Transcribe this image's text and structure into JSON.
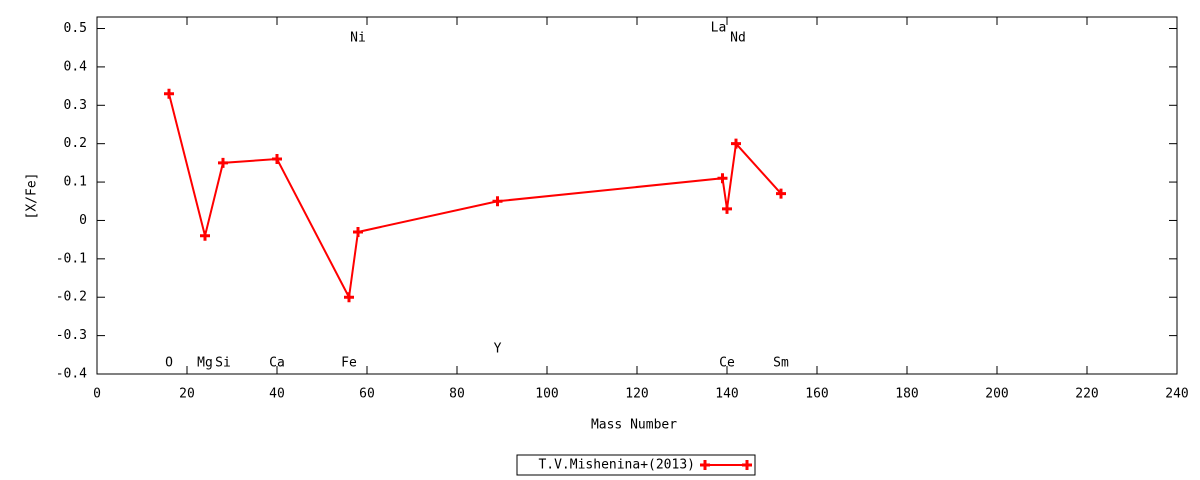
{
  "chart_data": {
    "type": "line",
    "x_label": "Mass Number",
    "y_label": "[X/Fe]",
    "x": [
      16,
      24,
      28,
      40,
      56,
      58,
      89,
      139,
      140,
      142,
      152
    ],
    "series": [
      {
        "name": "T.V.Mishenina+(2013)",
        "color": "#ff0000",
        "values": [
          0.33,
          -0.04,
          0.15,
          0.16,
          -0.2,
          -0.03,
          0.05,
          0.11,
          0.03,
          0.2,
          0.07
        ]
      }
    ],
    "annotations": [
      "O",
      "Mg",
      "Si",
      "Ca",
      "Fe",
      "Ni",
      "Y",
      "La",
      "Ce",
      "Nd",
      "Sm"
    ],
    "xlim": [
      0,
      240
    ],
    "xticks": [
      0,
      20,
      40,
      60,
      80,
      100,
      120,
      140,
      160,
      180,
      200,
      220,
      240
    ],
    "ylim": [
      -0.4,
      0.53
    ],
    "yticks": [
      -0.4,
      -0.3,
      -0.2,
      -0.1,
      0,
      0.1,
      0.2,
      0.3,
      0.4,
      0.5
    ],
    "grid": false,
    "legend": "bottom"
  }
}
